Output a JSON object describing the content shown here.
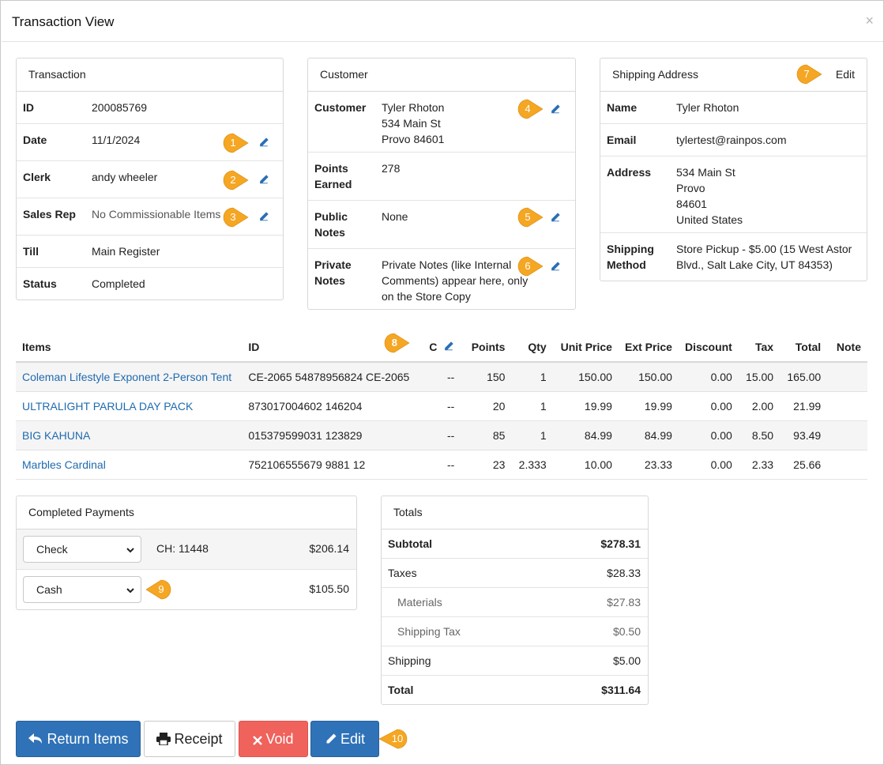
{
  "window": {
    "title": "Transaction View",
    "close_glyph": "×"
  },
  "transaction": {
    "heading": "Transaction",
    "id_label": "ID",
    "id": "200085769",
    "date_label": "Date",
    "date": "11/1/2024",
    "clerk_label": "Clerk",
    "clerk": "andy wheeler",
    "sales_rep_label": "Sales Rep",
    "sales_rep": "No Commissionable Items",
    "till_label": "Till",
    "till": "Main Register",
    "status_label": "Status",
    "status": "Completed"
  },
  "customer": {
    "heading": "Customer",
    "customer_label": "Customer",
    "name": "Tyler Rhoton",
    "street": "534 Main St",
    "city_zip": "Provo 84601",
    "points_label_1": "Points",
    "points_label_2": "Earned",
    "points": "278",
    "public_label_1": "Public",
    "public_label_2": "Notes",
    "public_notes": "None",
    "private_label_1": "Private",
    "private_label_2": "Notes",
    "private_notes_1": "Private Notes (like Internal",
    "private_notes_2": "Comments) appear here, only",
    "private_notes_3": "on the Store Copy"
  },
  "shipping": {
    "heading": "Shipping Address",
    "edit_label": "Edit",
    "name_label": "Name",
    "name": "Tyler Rhoton",
    "email_label": "Email",
    "email": "tylertest@rainpos.com",
    "address_label": "Address",
    "addr_1": "534 Main St",
    "addr_2": "Provo",
    "addr_3": "84601",
    "addr_4": "United States",
    "method_label_1": "Shipping",
    "method_label_2": "Method",
    "method_1": "Store Pickup - $5.00 (15 West Astor",
    "method_2": "Blvd., Salt Lake City, UT 84353)"
  },
  "items_table": {
    "headers": {
      "items": "Items",
      "id": "ID",
      "c": "C",
      "points": "Points",
      "qty": "Qty",
      "unit_price": "Unit Price",
      "ext_price": "Ext Price",
      "discount": "Discount",
      "tax": "Tax",
      "total": "Total",
      "note": "Note"
    },
    "rows": [
      {
        "name": "Coleman Lifestyle Exponent 2-Person Tent",
        "id": "CE-2065 54878956824 CE-2065",
        "c": "--",
        "points": "150",
        "qty": "1",
        "unit_price": "150.00",
        "ext_price": "150.00",
        "discount": "0.00",
        "tax": "15.00",
        "total": "165.00",
        "note": ""
      },
      {
        "name": "ULTRALIGHT PARULA DAY PACK",
        "id": "873017004602 146204",
        "c": "--",
        "points": "20",
        "qty": "1",
        "unit_price": "19.99",
        "ext_price": "19.99",
        "discount": "0.00",
        "tax": "2.00",
        "total": "21.99",
        "note": ""
      },
      {
        "name": "BIG KAHUNA",
        "id": "015379599031 123829",
        "c": "--",
        "points": "85",
        "qty": "1",
        "unit_price": "84.99",
        "ext_price": "84.99",
        "discount": "0.00",
        "tax": "8.50",
        "total": "93.49",
        "note": ""
      },
      {
        "name": "Marbles Cardinal",
        "id": "752106555679 9881 12",
        "c": "--",
        "points": "23",
        "qty": "2.333",
        "unit_price": "10.00",
        "ext_price": "23.33",
        "discount": "0.00",
        "tax": "2.33",
        "total": "25.66",
        "note": ""
      }
    ]
  },
  "payments": {
    "heading": "Completed Payments",
    "list": [
      {
        "method": "Check",
        "ref": "CH: 11448",
        "amount": "$206.14"
      },
      {
        "method": "Cash",
        "ref": "",
        "amount": "$105.50"
      }
    ]
  },
  "totals": {
    "heading": "Totals",
    "subtotal_label": "Subtotal",
    "subtotal": "$278.31",
    "taxes_label": "Taxes",
    "taxes": "$28.33",
    "materials_label": "Materials",
    "materials": "$27.83",
    "shipping_tax_label": "Shipping Tax",
    "shipping_tax": "$0.50",
    "shipping_label": "Shipping",
    "shipping": "$5.00",
    "total_label": "Total",
    "total": "$311.64"
  },
  "buttons": {
    "return_items": "Return Items",
    "receipt": "Receipt",
    "void": "Void",
    "edit": "Edit"
  },
  "callouts": [
    "1",
    "2",
    "3",
    "4",
    "5",
    "6",
    "7",
    "8",
    "9",
    "10"
  ],
  "colors": {
    "accent_blue": "#2f72b8",
    "link_blue": "#1f6bb0",
    "void_red": "#f0625c",
    "callout_orange": "#f5a623",
    "pencil_blue": "#2a6fb5"
  },
  "icons": {
    "close": "close-icon",
    "pencil": "pencil-icon",
    "return": "reply-arrow-icon",
    "print": "printer-icon",
    "void": "x-icon",
    "edit": "pencil-icon",
    "select": "chevron-down-icon"
  }
}
